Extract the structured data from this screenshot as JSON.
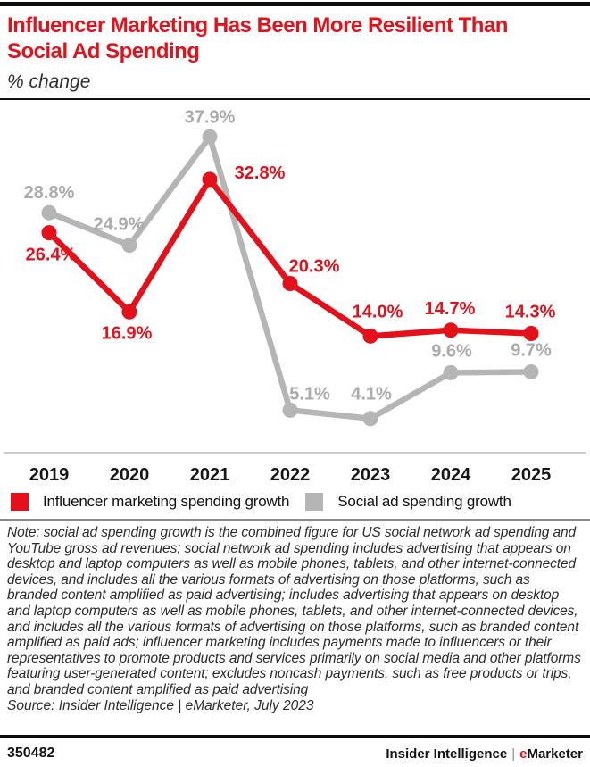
{
  "colors": {
    "accent_red": "#e4111a",
    "series_gray": "#b5b5b5",
    "gray_label": "#ababab",
    "axis_gray": "#cccccc"
  },
  "chart_data": {
    "type": "line",
    "title": "Influencer Marketing Has Been More Resilient Than Social Ad Spending",
    "title_lines": [
      "Influencer Marketing Has Been More Resilient Than",
      "Social Ad Spending"
    ],
    "subtitle": "% change",
    "x": [
      "2019",
      "2020",
      "2021",
      "2022",
      "2023",
      "2024",
      "2025"
    ],
    "ylim": [
      0,
      42
    ],
    "grid": false,
    "legend_position": "bottom",
    "series": [
      {
        "name": "Social ad spending growth",
        "color": "#b5b5b5",
        "label_color": "#ababab",
        "values": [
          28.8,
          24.9,
          37.9,
          5.1,
          4.1,
          9.6,
          9.7
        ],
        "labels": [
          "28.8%",
          "24.9%",
          "37.9%",
          "5.1%",
          "4.1%",
          "9.6%",
          "9.7%"
        ],
        "label_dx": [
          0,
          -12,
          0,
          22,
          1,
          1,
          0
        ],
        "label_dy": [
          -22,
          -23,
          -22,
          -18,
          -27,
          -24,
          -24
        ]
      },
      {
        "name": "Influencer marketing spending growth",
        "color": "#e4111a",
        "label_color": "#e4111a",
        "values": [
          26.4,
          16.9,
          32.8,
          20.3,
          14.0,
          14.7,
          14.3
        ],
        "labels": [
          "26.4%",
          "16.9%",
          "32.8%",
          "20.3%",
          "14.0%",
          "14.7%",
          "14.3%"
        ],
        "label_dx": [
          2,
          -3,
          56,
          27,
          8,
          -1,
          -1
        ],
        "label_dy": [
          25,
          24,
          -7,
          -19,
          -27,
          -24,
          -24
        ]
      }
    ],
    "legend_order": [
      1,
      0
    ]
  },
  "note": {
    "text": "Note: social ad spending growth is the combined figure for US social network ad spending and YouTube gross ad revenues; social network ad spending includes advertising that appears on desktop and laptop computers as well as mobile phones, tablets, and other internet-connected devices, and includes all the various formats of advertising on those platforms, such as branded content amplified as paid advertising; includes advertising that appears on desktop and laptop computers as well as mobile phones, tablets, and other internet-connected devices, and includes all the various formats of advertising on those platforms, such as branded content amplified as paid ads; influencer marketing includes payments made to influencers or their representatives to promote products and services primarily on social media and other platforms featuring user-generated content; excludes noncash payments, such as free products or trips, and branded content amplified as paid advertising",
    "source": "Source: Insider Intelligence | eMarketer, July 2023"
  },
  "footer": {
    "chart_id": "350482",
    "brand_name": "Insider Intelligence",
    "brand_separator": "|",
    "brand_e": "e",
    "brand_rest": "Marketer"
  }
}
